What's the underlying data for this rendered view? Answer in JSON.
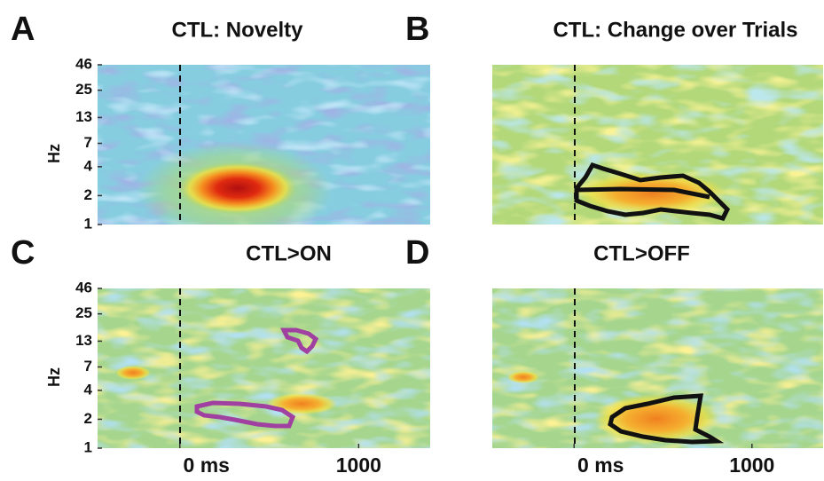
{
  "chart_data": [
    {
      "type": "heatmap",
      "panel": "A",
      "title": "CTL: Novelty",
      "ylabel": "Hz",
      "yscale": "log",
      "ylim": [
        1,
        46
      ],
      "yticks": [
        1,
        2,
        4,
        7,
        13,
        25,
        46
      ]
    },
    {
      "type": "heatmap",
      "panel": "B",
      "title": "CTL: Change over Trials"
    },
    {
      "type": "heatmap",
      "panel": "C",
      "title": "CTL>ON",
      "ylabel": "Hz",
      "yscale": "log",
      "ylim": [
        1,
        46
      ],
      "yticks": [
        1,
        2,
        4,
        7,
        13,
        25,
        46
      ],
      "xlim": [
        -460,
        1400
      ],
      "xticks": [
        {
          "value": 0,
          "label": "0 ms"
        },
        1000
      ]
    },
    {
      "type": "heatmap",
      "panel": "D",
      "title": "CTL>OFF",
      "xlim": [
        -460,
        1400
      ],
      "xticks": [
        {
          "value": 0,
          "label": "0 ms"
        },
        1000
      ]
    }
  ]
}
